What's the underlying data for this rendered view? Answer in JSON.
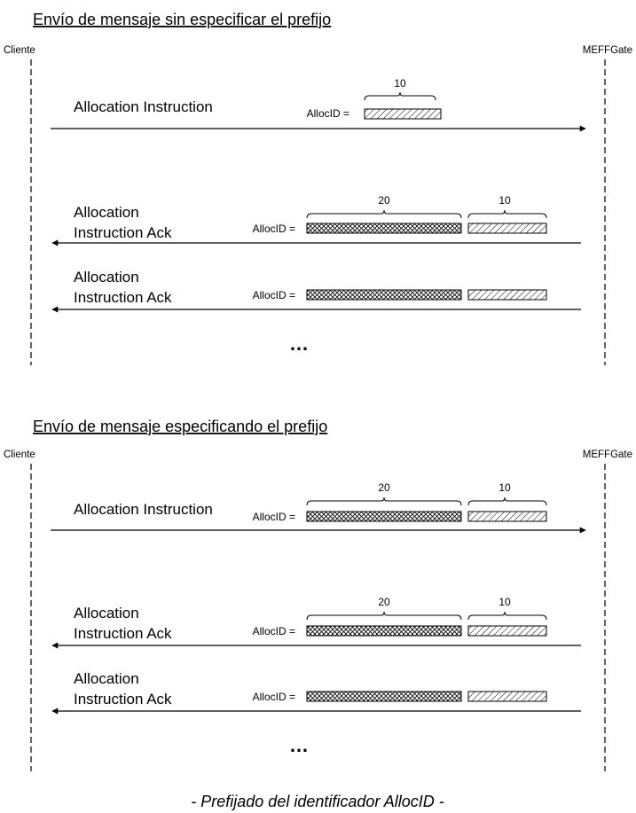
{
  "sections": [
    {
      "title": "Envío de mensaje sin especificar el prefijo",
      "left_actor": "Cliente",
      "right_actor": "MEFFGate",
      "messages": [
        {
          "label_lines": [
            "Allocation Instruction"
          ],
          "direction": "right",
          "field_label": "AllocID =",
          "segments": [
            {
              "width_label": "10",
              "pattern": "diagonal"
            }
          ]
        },
        {
          "label_lines": [
            "Allocation",
            "Instruction Ack"
          ],
          "direction": "left",
          "field_label": "AllocID =",
          "segments": [
            {
              "width_label": "20",
              "pattern": "crosshatch"
            },
            {
              "width_label": "10",
              "pattern": "diagonal"
            }
          ]
        },
        {
          "label_lines": [
            "Allocation",
            "Instruction Ack"
          ],
          "direction": "left",
          "field_label": "AllocID =",
          "segments": [
            {
              "width_label": "",
              "pattern": "crosshatch"
            },
            {
              "width_label": "",
              "pattern": "diagonal"
            }
          ]
        }
      ],
      "ellipsis": "…"
    },
    {
      "title": "Envío de mensaje especificando el prefijo",
      "left_actor": "Cliente",
      "right_actor": "MEFFGate",
      "messages": [
        {
          "label_lines": [
            "Allocation Instruction"
          ],
          "direction": "right",
          "field_label": "AllocID =",
          "segments": [
            {
              "width_label": "20",
              "pattern": "crosshatch"
            },
            {
              "width_label": "10",
              "pattern": "diagonal"
            }
          ]
        },
        {
          "label_lines": [
            "Allocation",
            "Instruction Ack"
          ],
          "direction": "left",
          "field_label": "AllocID =",
          "segments": [
            {
              "width_label": "20",
              "pattern": "crosshatch"
            },
            {
              "width_label": "10",
              "pattern": "diagonal"
            }
          ]
        },
        {
          "label_lines": [
            "Allocation",
            "Instruction Ack"
          ],
          "direction": "left",
          "field_label": "AllocID =",
          "segments": [
            {
              "width_label": "",
              "pattern": "crosshatch"
            },
            {
              "width_label": "",
              "pattern": "diagonal"
            }
          ]
        }
      ],
      "ellipsis": "…"
    }
  ],
  "caption": "- Prefijado del identificador AllocID -"
}
